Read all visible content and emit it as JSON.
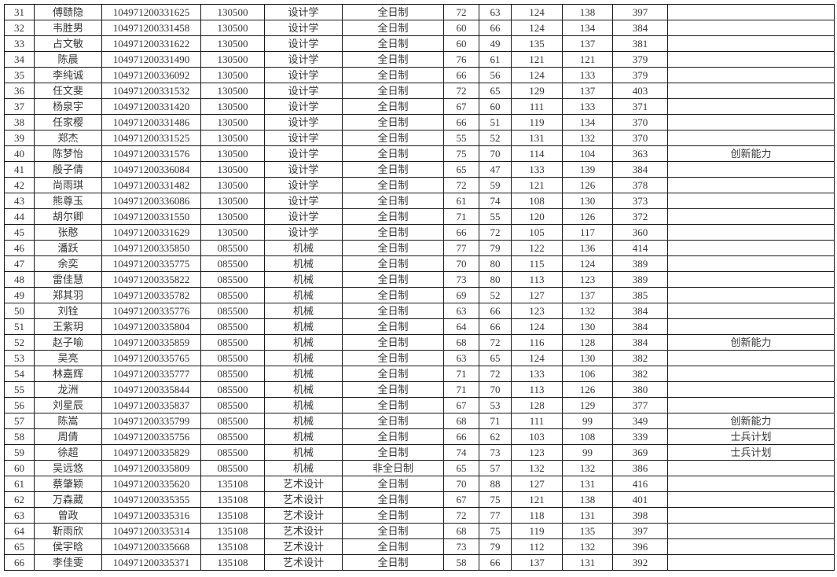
{
  "colors": {
    "background": "#ffffff",
    "table_border": "#1a1a1a",
    "text": "#363636"
  },
  "table": {
    "visible_row_range": {
      "first": "31",
      "last": "66"
    },
    "rows": [
      [
        "31",
        "傅赜隐",
        "104971200331625",
        "130500",
        "设计学",
        "全日制",
        "72",
        "63",
        "124",
        "138",
        "397",
        ""
      ],
      [
        "32",
        "韦胜男",
        "104971200331458",
        "130500",
        "设计学",
        "全日制",
        "60",
        "66",
        "124",
        "134",
        "384",
        ""
      ],
      [
        "33",
        "占文敏",
        "104971200331622",
        "130500",
        "设计学",
        "全日制",
        "60",
        "49",
        "135",
        "137",
        "381",
        ""
      ],
      [
        "34",
        "陈晨",
        "104971200331490",
        "130500",
        "设计学",
        "全日制",
        "76",
        "61",
        "121",
        "121",
        "379",
        ""
      ],
      [
        "35",
        "李纯诚",
        "104971200336092",
        "130500",
        "设计学",
        "全日制",
        "66",
        "56",
        "124",
        "133",
        "379",
        ""
      ],
      [
        "36",
        "任文斐",
        "104971200331532",
        "130500",
        "设计学",
        "全日制",
        "72",
        "65",
        "129",
        "137",
        "403",
        ""
      ],
      [
        "37",
        "杨泉宇",
        "104971200331420",
        "130500",
        "设计学",
        "全日制",
        "67",
        "60",
        "111",
        "133",
        "371",
        ""
      ],
      [
        "38",
        "任家樱",
        "104971200331486",
        "130500",
        "设计学",
        "全日制",
        "66",
        "51",
        "119",
        "134",
        "370",
        ""
      ],
      [
        "39",
        "郑杰",
        "104971200331525",
        "130500",
        "设计学",
        "全日制",
        "55",
        "52",
        "131",
        "132",
        "370",
        ""
      ],
      [
        "40",
        "陈梦怡",
        "104971200331576",
        "130500",
        "设计学",
        "全日制",
        "75",
        "70",
        "114",
        "104",
        "363",
        "创新能力"
      ],
      [
        "41",
        "殷子倩",
        "104971200336084",
        "130500",
        "设计学",
        "全日制",
        "65",
        "47",
        "133",
        "139",
        "384",
        ""
      ],
      [
        "42",
        "尚雨琪",
        "104971200331482",
        "130500",
        "设计学",
        "全日制",
        "72",
        "59",
        "121",
        "126",
        "378",
        ""
      ],
      [
        "43",
        "熊尊玉",
        "104971200336086",
        "130500",
        "设计学",
        "全日制",
        "61",
        "74",
        "108",
        "130",
        "373",
        ""
      ],
      [
        "44",
        "胡尔卿",
        "104971200331550",
        "130500",
        "设计学",
        "全日制",
        "71",
        "55",
        "120",
        "126",
        "372",
        ""
      ],
      [
        "45",
        "张憨",
        "104971200331629",
        "130500",
        "设计学",
        "全日制",
        "66",
        "72",
        "105",
        "117",
        "360",
        ""
      ],
      [
        "46",
        "潘跃",
        "104971200335850",
        "085500",
        "机械",
        "全日制",
        "77",
        "79",
        "122",
        "136",
        "414",
        ""
      ],
      [
        "47",
        "余奕",
        "104971200335775",
        "085500",
        "机械",
        "全日制",
        "70",
        "80",
        "115",
        "124",
        "389",
        ""
      ],
      [
        "48",
        "雷佳慧",
        "104971200335822",
        "085500",
        "机械",
        "全日制",
        "73",
        "80",
        "113",
        "123",
        "389",
        ""
      ],
      [
        "49",
        "郑其羽",
        "104971200335782",
        "085500",
        "机械",
        "全日制",
        "69",
        "52",
        "127",
        "137",
        "385",
        ""
      ],
      [
        "50",
        "刘铨",
        "104971200335776",
        "085500",
        "机械",
        "全日制",
        "63",
        "66",
        "123",
        "132",
        "384",
        ""
      ],
      [
        "51",
        "王紫玥",
        "104971200335804",
        "085500",
        "机械",
        "全日制",
        "64",
        "66",
        "124",
        "130",
        "384",
        ""
      ],
      [
        "52",
        "赵子喻",
        "104971200335859",
        "085500",
        "机械",
        "全日制",
        "68",
        "72",
        "116",
        "128",
        "384",
        "创新能力"
      ],
      [
        "53",
        "吴亮",
        "104971200335765",
        "085500",
        "机械",
        "全日制",
        "63",
        "65",
        "124",
        "130",
        "382",
        ""
      ],
      [
        "54",
        "林嘉辉",
        "104971200335777",
        "085500",
        "机械",
        "全日制",
        "71",
        "72",
        "133",
        "106",
        "382",
        ""
      ],
      [
        "55",
        "龙洲",
        "104971200335844",
        "085500",
        "机械",
        "全日制",
        "71",
        "70",
        "113",
        "126",
        "380",
        ""
      ],
      [
        "56",
        "刘星辰",
        "104971200335837",
        "085500",
        "机械",
        "全日制",
        "67",
        "53",
        "128",
        "129",
        "377",
        ""
      ],
      [
        "57",
        "陈嵩",
        "104971200335799",
        "085500",
        "机械",
        "全日制",
        "68",
        "71",
        "111",
        "99",
        "349",
        "创新能力"
      ],
      [
        "58",
        "周倩",
        "104971200335756",
        "085500",
        "机械",
        "全日制",
        "66",
        "62",
        "103",
        "108",
        "339",
        "士兵计划"
      ],
      [
        "59",
        "徐超",
        "104971200335829",
        "085500",
        "机械",
        "全日制",
        "74",
        "73",
        "123",
        "99",
        "369",
        "士兵计划"
      ],
      [
        "60",
        "吴远悠",
        "104971200335809",
        "085500",
        "机械",
        "非全日制",
        "65",
        "57",
        "132",
        "132",
        "386",
        ""
      ],
      [
        "61",
        "蔡肇颖",
        "104971200335620",
        "135108",
        "艺术设计",
        "全日制",
        "70",
        "88",
        "127",
        "131",
        "416",
        ""
      ],
      [
        "62",
        "万森葳",
        "104971200335355",
        "135108",
        "艺术设计",
        "全日制",
        "67",
        "75",
        "121",
        "138",
        "401",
        ""
      ],
      [
        "63",
        "曾政",
        "104971200335316",
        "135108",
        "艺术设计",
        "全日制",
        "72",
        "77",
        "118",
        "131",
        "398",
        ""
      ],
      [
        "64",
        "靳雨欣",
        "104971200335314",
        "135108",
        "艺术设计",
        "全日制",
        "68",
        "75",
        "119",
        "135",
        "397",
        ""
      ],
      [
        "65",
        "侯宇晗",
        "104971200335668",
        "135108",
        "艺术设计",
        "全日制",
        "73",
        "79",
        "112",
        "132",
        "396",
        ""
      ],
      [
        "66",
        "李佳雯",
        "104971200335371",
        "135108",
        "艺术设计",
        "全日制",
        "58",
        "66",
        "137",
        "131",
        "392",
        ""
      ]
    ]
  }
}
